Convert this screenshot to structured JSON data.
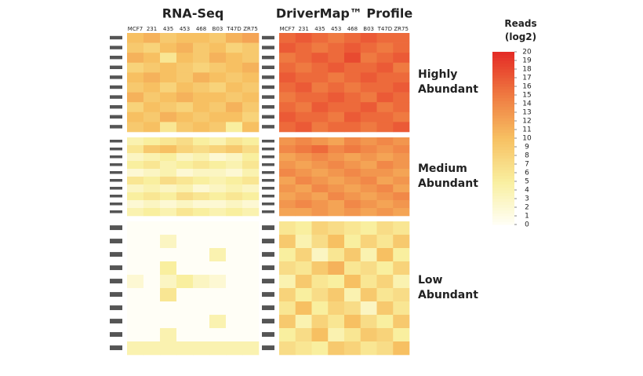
{
  "chart_data": {
    "type": "heatmap",
    "columns": [
      "MCF7",
      "231",
      "435",
      "453",
      "468",
      "B03",
      "T47D",
      "ZR75"
    ],
    "colorbar_title": "Reads (log2)",
    "zlim": [
      0,
      20
    ],
    "zticks": [
      0,
      1,
      2,
      3,
      4,
      5,
      6,
      7,
      8,
      9,
      10,
      11,
      12,
      13,
      14,
      15,
      16,
      17,
      18,
      19,
      20
    ],
    "colorscale": [
      "#fffef6",
      "#f9ef9f",
      "#f7c062",
      "#ef7a41",
      "#e42a25"
    ],
    "group_labels": [
      "Highly Abundant",
      "Medium Abundant",
      "Low Abundant"
    ],
    "panels": [
      {
        "title": "RNA-Seq",
        "groups": [
          {
            "values": [
              [
                10,
                11,
                9,
                10,
                10,
                9,
                11,
                12
              ],
              [
                9,
                8,
                10,
                11,
                9,
                10,
                8,
                9
              ],
              [
                11,
                10,
                6,
                10,
                9,
                11,
                10,
                9
              ],
              [
                8,
                9,
                10,
                9,
                8,
                9,
                10,
                11
              ],
              [
                10,
                11,
                10,
                9,
                11,
                10,
                9,
                10
              ],
              [
                9,
                10,
                8,
                10,
                9,
                8,
                10,
                9
              ],
              [
                11,
                9,
                10,
                11,
                10,
                10,
                9,
                10
              ],
              [
                8,
                10,
                9,
                8,
                10,
                9,
                11,
                9
              ],
              [
                10,
                9,
                11,
                10,
                9,
                10,
                10,
                8
              ],
              [
                9,
                10,
                6,
                9,
                10,
                9,
                5,
                10
              ]
            ]
          },
          {
            "values": [
              [
                4,
                5,
                6,
                7,
                5,
                4,
                6,
                5
              ],
              [
                6,
                9,
                10,
                8,
                7,
                8,
                9,
                7
              ],
              [
                3,
                4,
                5,
                3,
                4,
                2,
                3,
                5
              ],
              [
                5,
                6,
                4,
                5,
                6,
                5,
                4,
                6
              ],
              [
                2,
                3,
                4,
                2,
                3,
                3,
                2,
                4
              ],
              [
                6,
                5,
                7,
                6,
                5,
                4,
                5,
                6
              ],
              [
                3,
                4,
                3,
                4,
                2,
                3,
                4,
                3
              ],
              [
                5,
                6,
                5,
                7,
                6,
                5,
                6,
                5
              ],
              [
                2,
                3,
                2,
                3,
                2,
                2,
                3,
                2
              ],
              [
                4,
                5,
                4,
                6,
                5,
                4,
                5,
                4
              ]
            ]
          },
          {
            "values": [
              [
                0,
                0,
                0,
                0,
                0,
                0,
                0,
                0
              ],
              [
                0,
                0,
                3,
                0,
                0,
                0,
                0,
                0
              ],
              [
                0,
                0,
                0,
                0,
                0,
                4,
                0,
                0
              ],
              [
                0,
                0,
                5,
                0,
                0,
                0,
                0,
                0
              ],
              [
                2,
                0,
                3,
                5,
                3,
                2,
                0,
                0
              ],
              [
                0,
                0,
                6,
                0,
                0,
                0,
                0,
                0
              ],
              [
                0,
                0,
                0,
                0,
                0,
                0,
                0,
                0
              ],
              [
                0,
                0,
                0,
                0,
                0,
                4,
                0,
                0
              ],
              [
                0,
                0,
                4,
                0,
                0,
                0,
                0,
                0
              ],
              [
                4,
                4,
                4,
                4,
                4,
                4,
                4,
                4
              ]
            ]
          }
        ]
      },
      {
        "title": "DriverMap™ Profile",
        "groups": [
          {
            "values": [
              [
                16,
                17,
                16,
                15,
                16,
                17,
                16,
                16
              ],
              [
                17,
                16,
                15,
                16,
                17,
                16,
                15,
                16
              ],
              [
                15,
                16,
                17,
                16,
                18,
                15,
                16,
                17
              ],
              [
                16,
                15,
                16,
                17,
                16,
                16,
                17,
                15
              ],
              [
                17,
                16,
                16,
                15,
                16,
                17,
                16,
                16
              ],
              [
                16,
                17,
                15,
                16,
                15,
                16,
                16,
                17
              ],
              [
                15,
                16,
                16,
                17,
                16,
                15,
                17,
                16
              ],
              [
                16,
                15,
                17,
                16,
                16,
                17,
                15,
                16
              ],
              [
                17,
                16,
                16,
                15,
                17,
                16,
                16,
                15
              ],
              [
                16,
                17,
                15,
                16,
                16,
                15,
                16,
                17
              ]
            ]
          },
          {
            "values": [
              [
                13,
                14,
                13,
                12,
                14,
                13,
                14,
                13
              ],
              [
                14,
                15,
                16,
                14,
                15,
                14,
                13,
                14
              ],
              [
                12,
                13,
                14,
                13,
                12,
                13,
                12,
                13
              ],
              [
                13,
                12,
                13,
                14,
                13,
                12,
                14,
                13
              ],
              [
                14,
                13,
                12,
                13,
                14,
                13,
                13,
                12
              ],
              [
                12,
                14,
                13,
                12,
                13,
                14,
                12,
                13
              ],
              [
                13,
                12,
                14,
                13,
                12,
                13,
                14,
                12
              ],
              [
                12,
                13,
                12,
                14,
                13,
                12,
                13,
                14
              ],
              [
                13,
                14,
                13,
                12,
                14,
                13,
                12,
                13
              ],
              [
                12,
                12,
                13,
                12,
                13,
                12,
                13,
                12
              ]
            ]
          },
          {
            "values": [
              [
                6,
                5,
                8,
                7,
                6,
                5,
                7,
                6
              ],
              [
                9,
                4,
                7,
                10,
                5,
                8,
                6,
                9
              ],
              [
                5,
                8,
                3,
                6,
                9,
                4,
                10,
                5
              ],
              [
                7,
                6,
                9,
                11,
                6,
                7,
                5,
                8
              ],
              [
                4,
                9,
                6,
                5,
                10,
                6,
                8,
                4
              ],
              [
                8,
                5,
                7,
                9,
                4,
                9,
                6,
                7
              ],
              [
                6,
                10,
                5,
                8,
                7,
                3,
                9,
                6
              ],
              [
                9,
                4,
                8,
                6,
                10,
                7,
                5,
                9
              ],
              [
                5,
                7,
                10,
                4,
                6,
                9,
                8,
                5
              ],
              [
                7,
                6,
                5,
                9,
                8,
                6,
                7,
                10
              ]
            ]
          }
        ]
      }
    ]
  }
}
